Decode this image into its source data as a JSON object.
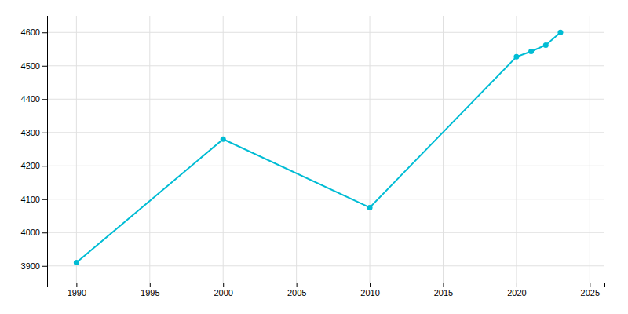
{
  "chart_data": {
    "type": "line",
    "x": [
      1990,
      2000,
      2010,
      2020,
      2021,
      2022,
      2023
    ],
    "values": [
      3910,
      4280,
      4075,
      4527,
      4543,
      4562,
      4600
    ],
    "color": "#00BCD4",
    "marker": "circle",
    "xlim": [
      1988,
      2026
    ],
    "ylim": [
      3850,
      4650
    ],
    "xticks": [
      1990,
      1995,
      2000,
      2005,
      2010,
      2015,
      2020,
      2025
    ],
    "yticks": [
      3900,
      4000,
      4100,
      4200,
      4300,
      4400,
      4500,
      4600
    ],
    "grid": true
  }
}
